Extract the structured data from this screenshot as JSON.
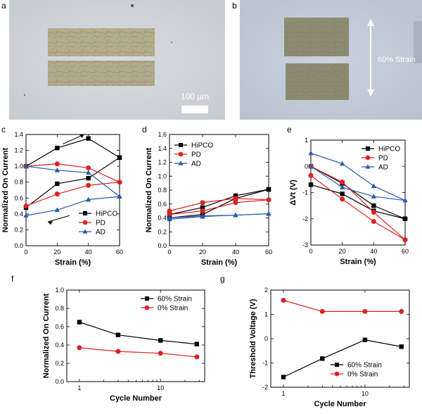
{
  "panel_labels": [
    "a",
    "b",
    "c",
    "d",
    "e",
    "f",
    "g"
  ],
  "micrographs": {
    "scale_label": "100 µm",
    "strain_label": "60% Strain"
  },
  "chart_data": [
    {
      "id": "c",
      "type": "line",
      "xlabel": "Strain (%)",
      "ylabel": "Normalized On Current",
      "xlim": [
        0,
        60
      ],
      "ylim": [
        0,
        1.4
      ],
      "xticks": [
        0,
        20,
        40,
        60
      ],
      "yticks": [
        0.0,
        0.2,
        0.4,
        0.6,
        0.8,
        1.0,
        1.2,
        1.4
      ],
      "legend": "bottom-right",
      "annotations": [
        "stretch-arrow",
        "release-arrow"
      ],
      "series": [
        {
          "name": "HiPCO",
          "color": "#000000",
          "marker": "square",
          "stretch": {
            "x": [
              0,
              20,
              40,
              60
            ],
            "y": [
              1.0,
              1.23,
              1.35,
              1.11
            ]
          },
          "release": {
            "x": [
              60,
              40,
              20,
              0
            ],
            "y": [
              1.11,
              0.85,
              0.78,
              0.48
            ]
          }
        },
        {
          "name": "PD",
          "color": "#e02020",
          "marker": "circle",
          "stretch": {
            "x": [
              0,
              20,
              40,
              60
            ],
            "y": [
              1.0,
              1.03,
              0.98,
              0.8
            ]
          },
          "release": {
            "x": [
              60,
              40,
              20,
              0
            ],
            "y": [
              0.8,
              0.76,
              0.65,
              0.5
            ]
          }
        },
        {
          "name": "AD",
          "color": "#2a5ab0",
          "marker": "triangle",
          "stretch": {
            "x": [
              0,
              20,
              40,
              60
            ],
            "y": [
              1.0,
              0.95,
              0.92,
              0.62
            ]
          },
          "release": {
            "x": [
              60,
              40,
              20,
              0
            ],
            "y": [
              0.62,
              0.58,
              0.45,
              0.38
            ]
          }
        }
      ]
    },
    {
      "id": "d",
      "type": "line",
      "xlabel": "Strain (%)",
      "ylabel": "Normalized On Current",
      "xlim": [
        0,
        60
      ],
      "ylim": [
        0,
        1.6
      ],
      "xticks": [
        0,
        20,
        40,
        60
      ],
      "yticks": [
        0.0,
        0.2,
        0.4,
        0.6,
        0.8,
        1.0,
        1.2,
        1.4,
        1.6
      ],
      "legend": "top-left",
      "series": [
        {
          "name": "HiPCO",
          "color": "#000000",
          "marker": "square",
          "stretch": {
            "x": [
              0,
              20,
              40,
              60
            ],
            "y": [
              0.45,
              0.55,
              0.72,
              0.81
            ]
          },
          "release": {
            "x": [
              60,
              40,
              20,
              0
            ],
            "y": [
              0.81,
              0.68,
              0.45,
              0.4
            ]
          }
        },
        {
          "name": "PD",
          "color": "#e02020",
          "marker": "circle",
          "stretch": {
            "x": [
              0,
              20,
              40,
              60
            ],
            "y": [
              0.5,
              0.62,
              0.68,
              0.66
            ]
          },
          "release": {
            "x": [
              60,
              40,
              20,
              0
            ],
            "y": [
              0.66,
              0.62,
              0.5,
              0.45
            ]
          }
        },
        {
          "name": "AD",
          "color": "#2a5ab0",
          "marker": "triangle",
          "stretch": {
            "x": [
              0,
              20,
              40,
              60
            ],
            "y": [
              0.4,
              0.43,
              0.44,
              0.46
            ]
          },
          "release": {
            "x": [
              60,
              40,
              20,
              0
            ],
            "y": [
              0.46,
              0.44,
              0.42,
              0.38
            ]
          }
        }
      ]
    },
    {
      "id": "e",
      "type": "line",
      "xlabel": "Strain (%)",
      "ylabel": "ΔVt (V)",
      "xlim": [
        0,
        60
      ],
      "ylim": [
        -3,
        1
      ],
      "xticks": [
        0,
        20,
        40,
        60
      ],
      "yticks": [
        1,
        0,
        -1,
        -2,
        -3
      ],
      "legend": "top-right",
      "series": [
        {
          "name": "HiPCO",
          "color": "#000000",
          "marker": "square",
          "stretch": {
            "x": [
              0,
              20,
              40,
              60
            ],
            "y": [
              0.0,
              -0.65,
              -1.5,
              -2.0
            ]
          },
          "release": {
            "x": [
              60,
              40,
              20,
              0
            ],
            "y": [
              -2.0,
              -1.7,
              -1.05,
              -0.7
            ]
          }
        },
        {
          "name": "PD",
          "color": "#e02020",
          "marker": "circle",
          "stretch": {
            "x": [
              0,
              20,
              40,
              60
            ],
            "y": [
              0.0,
              -0.6,
              -1.75,
              -2.8
            ]
          },
          "release": {
            "x": [
              60,
              40,
              20,
              0
            ],
            "y": [
              -2.8,
              -2.1,
              -1.25,
              -0.35
            ]
          }
        },
        {
          "name": "AD",
          "color": "#2a5ab0",
          "marker": "triangle",
          "stretch": {
            "x": [
              0,
              20,
              40,
              60
            ],
            "y": [
              0.5,
              0.1,
              -0.75,
              -1.3
            ]
          },
          "release": {
            "x": [
              60,
              40,
              20,
              0
            ],
            "y": [
              -1.3,
              -1.15,
              -0.8,
              0.0
            ]
          }
        }
      ]
    },
    {
      "id": "f",
      "type": "line",
      "xlabel": "Cycle Number",
      "ylabel": "Normalized On Current",
      "xscale": "log",
      "xlim": [
        0.7,
        35
      ],
      "ylim": [
        0,
        1.0
      ],
      "xticks": [
        1,
        10
      ],
      "yticks": [
        0.0,
        0.2,
        0.4,
        0.6,
        0.8,
        1.0
      ],
      "legend": "top-right",
      "series": [
        {
          "name": "60% Strain",
          "color": "#000000",
          "marker": "square",
          "x": [
            1,
            3,
            10,
            28
          ],
          "y": [
            0.65,
            0.51,
            0.45,
            0.41
          ]
        },
        {
          "name": "0% Strain",
          "color": "#e02020",
          "marker": "circle",
          "x": [
            1,
            3,
            10,
            28
          ],
          "y": [
            0.37,
            0.33,
            0.31,
            0.27
          ]
        }
      ]
    },
    {
      "id": "g",
      "type": "line",
      "xlabel": "Cycle Number",
      "ylabel": "Threshold Voltage (V)",
      "xscale": "log",
      "xlim": [
        0.7,
        35
      ],
      "ylim": [
        -2,
        2
      ],
      "xticks": [
        1,
        10
      ],
      "yticks": [
        2,
        1,
        0,
        -1,
        -2
      ],
      "legend": "bottom-right",
      "series": [
        {
          "name": "60% Strain",
          "color": "#000000",
          "marker": "square",
          "x": [
            1,
            3,
            10,
            28
          ],
          "y": [
            -1.58,
            -0.82,
            -0.05,
            -0.33
          ]
        },
        {
          "name": "0% Strain",
          "color": "#e02020",
          "marker": "circle",
          "x": [
            1,
            3,
            10,
            28
          ],
          "y": [
            1.58,
            1.12,
            1.12,
            1.12
          ]
        }
      ]
    }
  ]
}
